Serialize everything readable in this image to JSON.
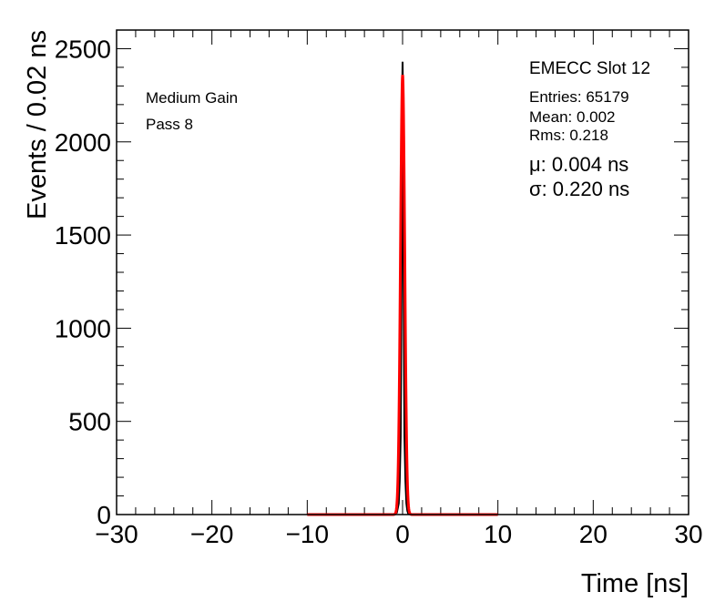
{
  "chart_data": {
    "type": "line",
    "xlabel": "Time [ns]",
    "ylabel": "Events / 0.02 ns",
    "xlim": [
      -30,
      30
    ],
    "ylim": [
      0,
      2600
    ],
    "x_ticks": [
      -30,
      -20,
      -10,
      0,
      10,
      20,
      30
    ],
    "x_tick_labels": [
      "−30",
      "−20",
      "−10",
      "0",
      "10",
      "20",
      "30"
    ],
    "y_ticks": [
      0,
      500,
      1000,
      1500,
      2000,
      2500
    ],
    "y_tick_labels": [
      "0",
      "500",
      "1000",
      "1500",
      "2000",
      "2500"
    ],
    "grid": false,
    "series": [
      {
        "kind": "histogram",
        "color": "#000000",
        "x": [
          -1.0,
          -0.6,
          -0.4,
          -0.3,
          -0.2,
          -0.14,
          -0.1,
          -0.06,
          -0.04,
          -0.02,
          0.0,
          0.02,
          0.04,
          0.06,
          0.1,
          0.14,
          0.2,
          0.3,
          0.4,
          0.5,
          0.6,
          1.0
        ],
        "y": [
          0,
          10,
          60,
          180,
          420,
          900,
          1300,
          1800,
          2200,
          2350,
          2430,
          2350,
          2200,
          1800,
          1300,
          900,
          420,
          180,
          60,
          20,
          5,
          0
        ]
      },
      {
        "kind": "gaussian-fit",
        "color": "#ff0000",
        "range": [
          -10,
          10
        ],
        "mu": 0.004,
        "sigma": 0.22,
        "amplitude": 2360
      }
    ],
    "annotations": {
      "slot": "EMECC Slot 12",
      "gain": "Medium Gain",
      "pass": "Pass 8",
      "entries": "Entries: 65179",
      "mean": "Mean: 0.002",
      "rms": "Rms: 0.218",
      "mu": "μ: 0.004 ns",
      "sigma": "σ: 0.220 ns"
    }
  }
}
